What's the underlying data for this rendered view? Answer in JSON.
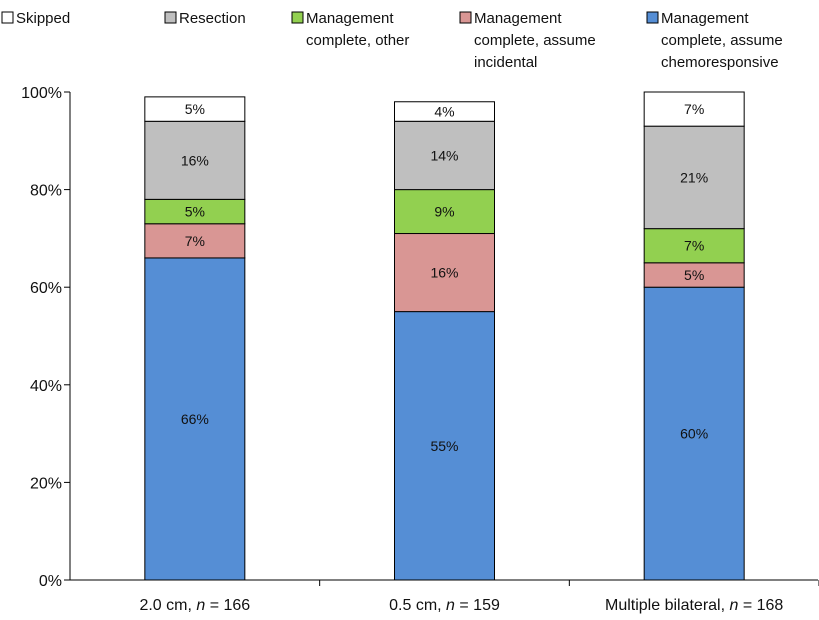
{
  "chart_data": {
    "type": "bar",
    "stacked": true,
    "title": "",
    "xlabel": "",
    "ylabel": "",
    "ylim": [
      0,
      100
    ],
    "y_ticks": [
      "0%",
      "20%",
      "40%",
      "60%",
      "80%",
      "100%"
    ],
    "categories": [
      {
        "text": "2.0 cm, ",
        "n": "n",
        "rest": " = 166"
      },
      {
        "text": "0.5 cm, ",
        "n": "n",
        "rest": " = 159"
      },
      {
        "text": "Multiple bilateral, ",
        "n": "n",
        "rest": " = 168"
      }
    ],
    "series": [
      {
        "name": [
          "Management",
          "complete, assume",
          "chemoresponsive"
        ],
        "color": "#558ed5",
        "values": [
          66,
          55,
          60
        ],
        "labels": [
          "66%",
          "55%",
          "60%"
        ]
      },
      {
        "name": [
          "Management",
          "complete, assume",
          "incidental"
        ],
        "color": "#d99694",
        "values": [
          7,
          16,
          5
        ],
        "labels": [
          "7%",
          "16%",
          "5%"
        ]
      },
      {
        "name": [
          "Management",
          "complete, other"
        ],
        "color": "#92d050",
        "values": [
          5,
          9,
          7
        ],
        "labels": [
          "5%",
          "9%",
          "7%"
        ]
      },
      {
        "name": [
          "Resection"
        ],
        "color": "#bfbfbf",
        "values": [
          16,
          14,
          21
        ],
        "labels": [
          "16%",
          "14%",
          "21%"
        ]
      },
      {
        "name": [
          "Skipped"
        ],
        "color": "#ffffff",
        "values": [
          5,
          4,
          7
        ],
        "labels": [
          "5%",
          "4%",
          "7%"
        ]
      }
    ],
    "legend_order": [
      4,
      3,
      2,
      1,
      0
    ],
    "legend_position": "top"
  }
}
